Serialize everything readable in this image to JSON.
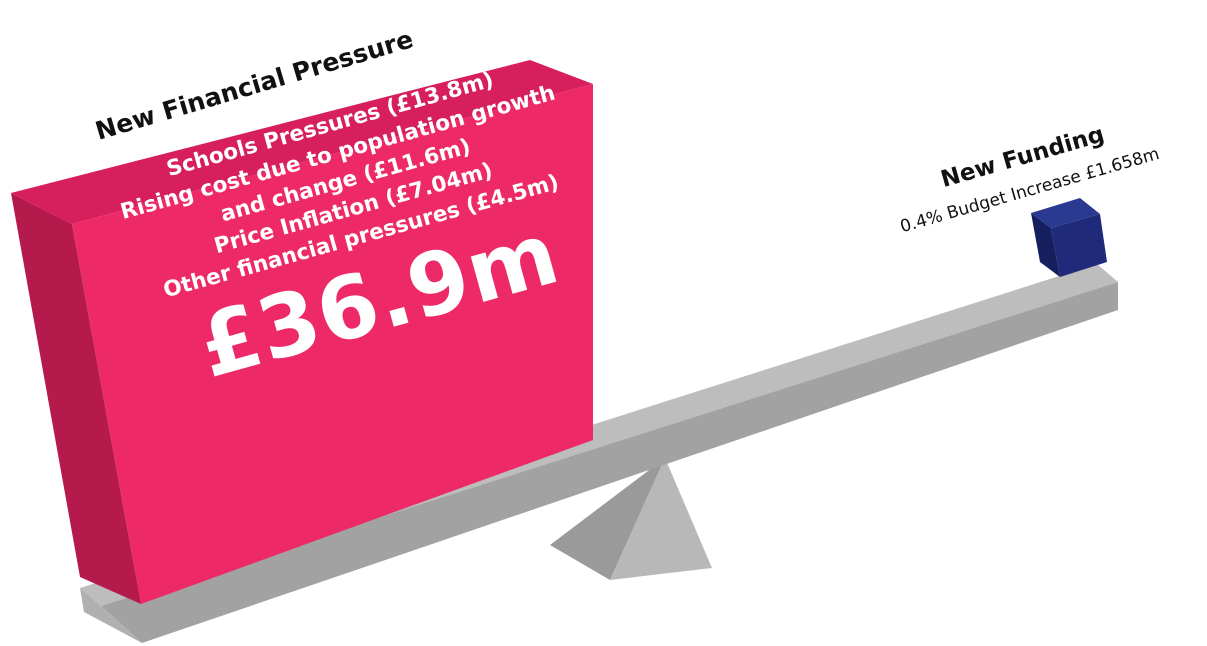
{
  "pressure": {
    "title": "New Financial Pressure",
    "lines": [
      "Schools Pressures (£13.8m)",
      "Rising cost due to population growth",
      "and change (£11.6m)",
      "Price Inflation (£7.04m)",
      "Other financial pressures (£4.5m)"
    ],
    "total": "£36.9m",
    "color": "#ed2a67"
  },
  "funding": {
    "title": "New Funding",
    "subtitle": "0.4% Budget Increase £1.658m",
    "color": "#1f2b7a"
  },
  "seesaw": {
    "beam_color": "#b7b7b7",
    "fulcrum_color": "#b0b0b0"
  }
}
